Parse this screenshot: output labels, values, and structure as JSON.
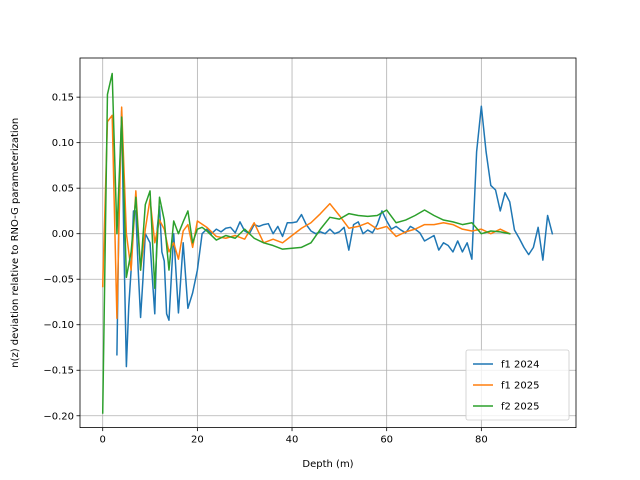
{
  "chart_data": {
    "type": "line",
    "title": "",
    "xlabel": "Depth (m)",
    "ylabel": "n(z) deviation relative to RNO-G parameterization",
    "xlim": [
      -4.8,
      100
    ],
    "ylim": [
      -0.213,
      0.193
    ],
    "xticks": [
      0,
      20,
      40,
      60,
      80
    ],
    "xtick_labels": [
      "0",
      "20",
      "40",
      "60",
      "80"
    ],
    "yticks": [
      -0.2,
      -0.15,
      -0.1,
      -0.05,
      0.0,
      0.05,
      0.1,
      0.15
    ],
    "ytick_labels": [
      "−0.20",
      "−0.15",
      "−0.10",
      "−0.05",
      "0.00",
      "0.05",
      "0.10",
      "0.15"
    ],
    "grid": true,
    "legend_position": "lower-right",
    "series": [
      {
        "name": "f1 2024",
        "color": "#1f77b4",
        "x": [
          3.0,
          3.5,
          4.0,
          4.5,
          5.0,
          5.5,
          6.0,
          6.5,
          7.0,
          7.5,
          8.0,
          8.5,
          9.0,
          9.5,
          10.0,
          10.5,
          11.0,
          11.5,
          12.0,
          12.5,
          13.0,
          13.5,
          14.0,
          15.0,
          16.0,
          17.0,
          18.0,
          19.0,
          20.0,
          21.0,
          22.0,
          23.0,
          24.0,
          25.0,
          26.0,
          27.0,
          28.0,
          29.0,
          30.0,
          31.0,
          32.0,
          33.0,
          34.0,
          35.0,
          36.0,
          37.0,
          38.0,
          39.0,
          40.0,
          41.0,
          42.0,
          43.0,
          44.0,
          45.0,
          46.0,
          47.0,
          48.0,
          49.0,
          50.0,
          51.0,
          52.0,
          53.0,
          54.0,
          55.0,
          56.0,
          57.0,
          58.0,
          59.0,
          60.0,
          61.0,
          62.0,
          63.0,
          64.0,
          65.0,
          66.0,
          67.0,
          68.0,
          69.0,
          70.0,
          71.0,
          72.0,
          73.0,
          74.0,
          75.0,
          76.0,
          77.0,
          78.0,
          79.0,
          80.0,
          81.0,
          82.0,
          83.0,
          84.0,
          85.0,
          86.0,
          87.0,
          88.0,
          89.0,
          90.0,
          91.0,
          92.0,
          93.0,
          94.0,
          95.0
        ],
        "values": [
          -0.133,
          0.048,
          0.135,
          -0.02,
          -0.146,
          -0.08,
          -0.04,
          0.025,
          0.025,
          -0.04,
          -0.092,
          -0.05,
          0.0,
          -0.005,
          -0.01,
          -0.05,
          -0.088,
          0.005,
          0.03,
          -0.02,
          -0.03,
          -0.088,
          -0.095,
          0.0,
          -0.087,
          -0.01,
          -0.082,
          -0.065,
          -0.04,
          0.0,
          0.005,
          0.0,
          0.005,
          0.002,
          0.006,
          0.007,
          0.001,
          0.013,
          0.003,
          0.0,
          0.01,
          0.008,
          0.01,
          0.011,
          0.0,
          0.008,
          -0.003,
          0.012,
          0.012,
          0.013,
          0.021,
          0.01,
          0.003,
          0.0,
          0.002,
          0.0,
          0.005,
          0.0,
          0.002,
          0.007,
          -0.018,
          0.01,
          0.013,
          0.0,
          0.004,
          0.001,
          0.01,
          0.025,
          0.014,
          0.005,
          0.008,
          0.004,
          0.001,
          0.008,
          0.005,
          0.001,
          -0.008,
          -0.005,
          -0.002,
          -0.018,
          -0.01,
          -0.013,
          -0.02,
          -0.008,
          -0.02,
          -0.01,
          -0.028,
          0.09,
          0.14,
          0.09,
          0.053,
          0.048,
          0.025,
          0.045,
          0.035,
          0.004,
          -0.005,
          -0.015,
          -0.023,
          -0.015,
          0.007,
          -0.029,
          0.02,
          0.0
        ]
      },
      {
        "name": "f1 2025",
        "color": "#ff7f0e",
        "x": [
          0.0,
          1.0,
          2.0,
          3.0,
          4.0,
          5.0,
          6.0,
          7.0,
          8.0,
          9.0,
          10.0,
          11.0,
          12.0,
          13.0,
          14.0,
          15.0,
          16.0,
          17.0,
          18.0,
          19.0,
          20.0,
          22.0,
          24.0,
          26.0,
          28.0,
          30.0,
          32.0,
          34.0,
          36.0,
          38.0,
          40.0,
          42.0,
          44.0,
          46.0,
          48.0,
          50.0,
          52.0,
          54.0,
          56.0,
          58.0,
          60.0,
          62.0,
          64.0,
          66.0,
          68.0,
          70.0,
          72.0,
          74.0,
          76.0,
          78.0,
          80.0,
          82.0,
          84.0,
          86.0
        ],
        "values": [
          -0.058,
          0.123,
          0.13,
          -0.093,
          0.139,
          0.0,
          -0.04,
          0.047,
          -0.04,
          0.005,
          0.038,
          -0.01,
          0.015,
          0.005,
          -0.02,
          -0.01,
          -0.028,
          0.003,
          0.01,
          -0.015,
          0.014,
          0.007,
          -0.003,
          -0.005,
          -0.002,
          -0.006,
          0.012,
          -0.01,
          -0.006,
          -0.01,
          -0.002,
          0.006,
          0.012,
          0.022,
          0.033,
          0.02,
          0.006,
          0.008,
          0.012,
          0.005,
          0.008,
          -0.003,
          0.002,
          0.005,
          0.01,
          0.01,
          0.012,
          0.01,
          0.005,
          0.003,
          0.005,
          0.0,
          0.005,
          0.0
        ]
      },
      {
        "name": "f2 2025",
        "color": "#2ca02c",
        "x": [
          0.0,
          1.0,
          2.0,
          3.0,
          4.0,
          5.0,
          6.0,
          7.0,
          8.0,
          9.0,
          10.0,
          11.0,
          12.0,
          13.0,
          14.0,
          15.0,
          16.0,
          17.0,
          18.0,
          19.0,
          20.0,
          21.0,
          22.0,
          24.0,
          26.0,
          28.0,
          30.0,
          32.0,
          34.0,
          36.0,
          38.0,
          40.0,
          42.0,
          44.0,
          46.0,
          48.0,
          50.0,
          52.0,
          54.0,
          56.0,
          58.0,
          60.0,
          62.0,
          64.0,
          66.0,
          68.0,
          70.0,
          72.0,
          74.0,
          76.0,
          78.0,
          80.0,
          82.0,
          84.0,
          86.0
        ],
        "values": [
          -0.197,
          0.153,
          0.176,
          0.0,
          0.128,
          -0.048,
          -0.02,
          0.04,
          -0.04,
          0.032,
          0.047,
          -0.06,
          0.04,
          0.015,
          -0.04,
          0.014,
          0.0,
          0.013,
          0.025,
          -0.01,
          0.005,
          0.007,
          0.003,
          -0.007,
          -0.002,
          -0.005,
          0.005,
          -0.005,
          -0.01,
          -0.013,
          -0.017,
          -0.016,
          -0.015,
          -0.01,
          0.005,
          0.018,
          0.016,
          0.022,
          0.02,
          0.019,
          0.02,
          0.026,
          0.012,
          0.015,
          0.02,
          0.026,
          0.02,
          0.015,
          0.013,
          0.01,
          0.012,
          0.0,
          0.003,
          0.002,
          0.0
        ]
      }
    ]
  }
}
